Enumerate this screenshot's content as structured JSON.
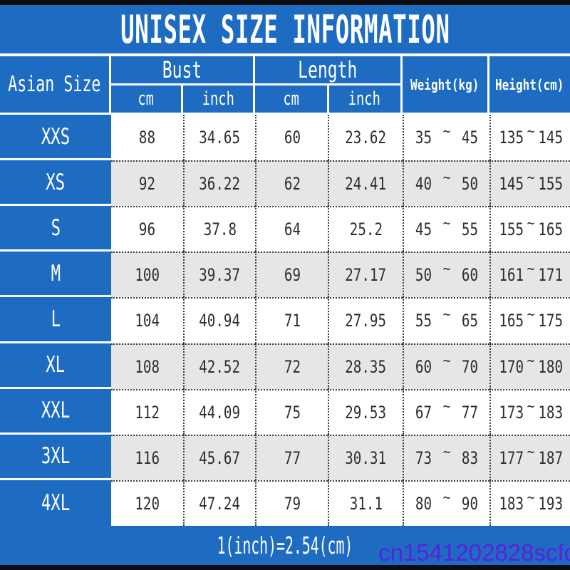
{
  "title": "UNISEX SIZE INFORMATION",
  "header": {
    "size_col": "Asian Size",
    "bust": {
      "label": "Bust",
      "sub_cm": "cm",
      "sub_inch": "inch"
    },
    "length": {
      "label": "Length",
      "sub_cm": "cm",
      "sub_inch": "inch"
    },
    "weight": "Weight(kg)",
    "height": "Height(cm)"
  },
  "tilde": "~",
  "rows": [
    {
      "size": "XXS",
      "bust_cm": "88",
      "bust_inch": "34.65",
      "length_cm": "60",
      "length_inch": "23.62",
      "weight_min": "35",
      "weight_max": "45",
      "height_min": "135",
      "height_max": "145"
    },
    {
      "size": "XS",
      "bust_cm": "92",
      "bust_inch": "36.22",
      "length_cm": "62",
      "length_inch": "24.41",
      "weight_min": "40",
      "weight_max": "50",
      "height_min": "145",
      "height_max": "155"
    },
    {
      "size": "S",
      "bust_cm": "96",
      "bust_inch": "37.8",
      "length_cm": "64",
      "length_inch": "25.2",
      "weight_min": "45",
      "weight_max": "55",
      "height_min": "155",
      "height_max": "165"
    },
    {
      "size": "M",
      "bust_cm": "100",
      "bust_inch": "39.37",
      "length_cm": "69",
      "length_inch": "27.17",
      "weight_min": "50",
      "weight_max": "60",
      "height_min": "161",
      "height_max": "171"
    },
    {
      "size": "L",
      "bust_cm": "104",
      "bust_inch": "40.94",
      "length_cm": "71",
      "length_inch": "27.95",
      "weight_min": "55",
      "weight_max": "65",
      "height_min": "165",
      "height_max": "175"
    },
    {
      "size": "XL",
      "bust_cm": "108",
      "bust_inch": "42.52",
      "length_cm": "72",
      "length_inch": "28.35",
      "weight_min": "60",
      "weight_max": "70",
      "height_min": "170",
      "height_max": "180"
    },
    {
      "size": "XXL",
      "bust_cm": "112",
      "bust_inch": "44.09",
      "length_cm": "75",
      "length_inch": "29.53",
      "weight_min": "67",
      "weight_max": "77",
      "height_min": "173",
      "height_max": "183"
    },
    {
      "size": "3XL",
      "bust_cm": "116",
      "bust_inch": "45.67",
      "length_cm": "77",
      "length_inch": "30.31",
      "weight_min": "73",
      "weight_max": "83",
      "height_min": "177",
      "height_max": "187"
    },
    {
      "size": "4XL",
      "bust_cm": "120",
      "bust_inch": "47.24",
      "length_cm": "79",
      "length_inch": "31.1",
      "weight_min": "80",
      "weight_max": "90",
      "height_min": "183",
      "height_max": "193"
    }
  ],
  "footer": {
    "note": "1(inch)=2.54(cm)"
  },
  "watermark": "cn1541202828scfo",
  "colors": {
    "accent_blue": "#1e6cc2",
    "row_alt_gray": "#e8e6e5",
    "watermark_violet": "#5e1fdd",
    "border_black": "#0d0d0f"
  }
}
